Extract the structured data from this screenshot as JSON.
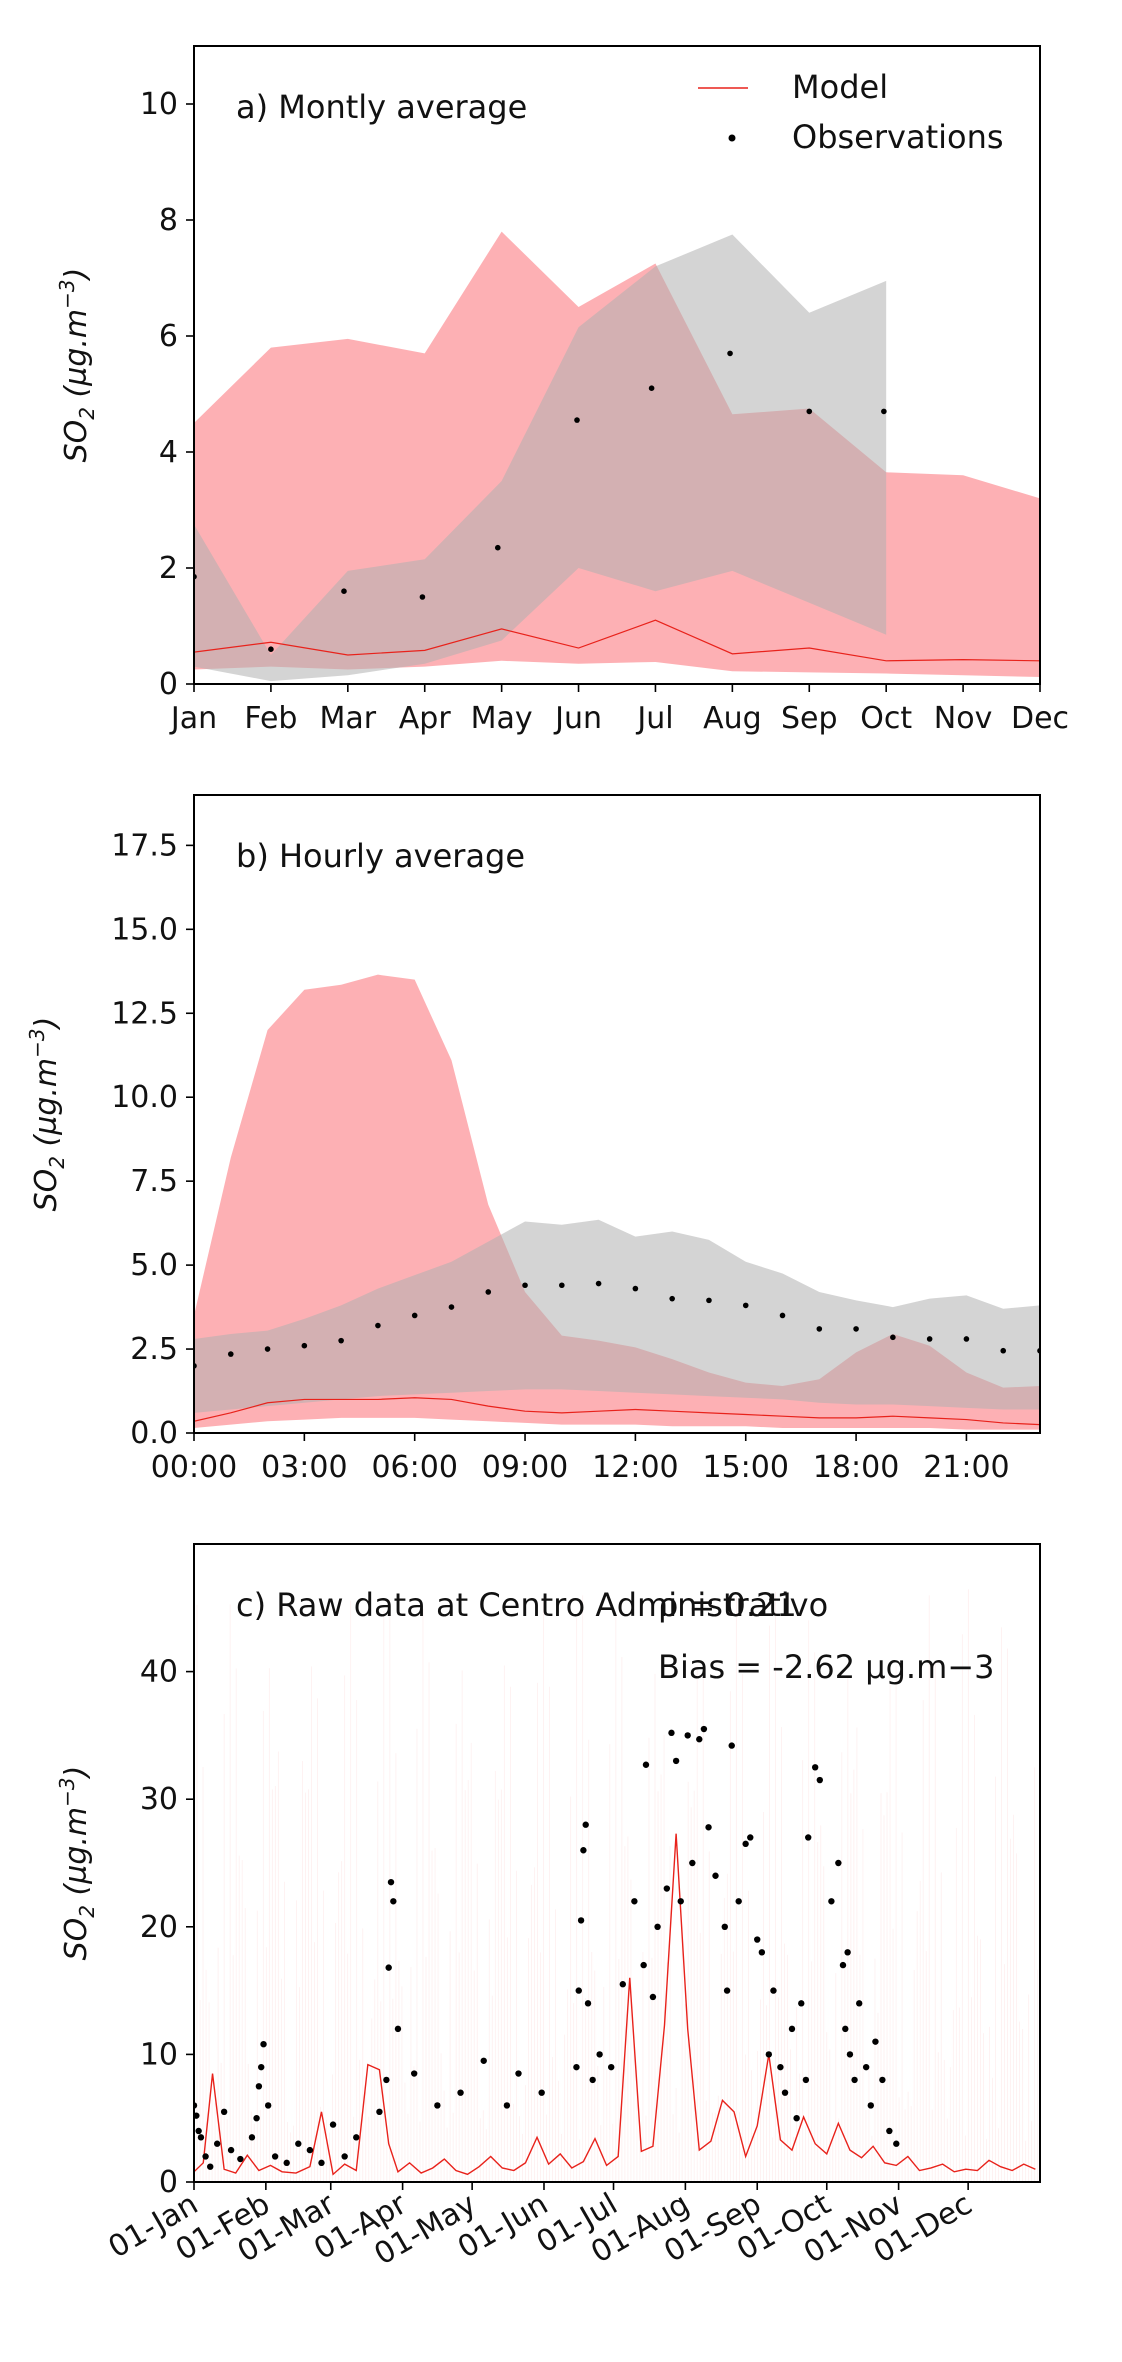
{
  "chart_data": [
    {
      "type": "line",
      "panel": "a",
      "annotation": "a) Montly average",
      "ylabel": "SO2 (µg.m−3)",
      "ylim": [
        0,
        11
      ],
      "yticks": [
        0,
        2,
        4,
        6,
        8,
        10
      ],
      "xlim": [
        0,
        11
      ],
      "categories": [
        "Jan",
        "Feb",
        "Mar",
        "Apr",
        "May",
        "Jun",
        "Jul",
        "Aug",
        "Sep",
        "Oct",
        "Nov",
        "Dec"
      ],
      "legend": {
        "placement": "top-right",
        "entries": [
          "Model",
          "Observations"
        ]
      },
      "colors": {
        "model": "#e8221b",
        "model_band": "#fca8ac",
        "obs": "#000000",
        "obs_band": "#c8c8c8"
      },
      "series": [
        {
          "name": "Model",
          "kind": "line",
          "x": [
            0,
            1,
            2,
            3,
            4,
            5,
            6,
            7,
            8,
            9,
            10,
            11
          ],
          "y": [
            0.55,
            0.72,
            0.5,
            0.58,
            0.95,
            0.62,
            1.1,
            0.52,
            0.62,
            0.4,
            0.42,
            0.4
          ]
        },
        {
          "name": "Model",
          "kind": "band",
          "x": [
            0,
            1,
            2,
            3,
            4,
            5,
            6,
            7,
            8,
            9,
            10,
            11
          ],
          "upper": [
            4.5,
            5.8,
            5.95,
            5.7,
            7.8,
            6.5,
            7.25,
            4.65,
            4.75,
            3.65,
            3.6,
            3.2
          ],
          "lower": [
            0.25,
            0.3,
            0.25,
            0.3,
            0.4,
            0.35,
            0.38,
            0.22,
            0.2,
            0.18,
            0.15,
            0.12
          ]
        },
        {
          "name": "Observations",
          "kind": "band",
          "x": [
            0,
            1,
            2,
            3,
            4,
            5,
            6,
            7,
            8,
            9
          ],
          "upper": [
            2.75,
            0.5,
            1.95,
            2.15,
            3.5,
            6.15,
            7.2,
            7.75,
            6.4,
            6.95
          ],
          "lower": [
            0.3,
            0.05,
            0.15,
            0.35,
            0.75,
            2.0,
            1.6,
            1.95,
            1.4,
            0.85
          ]
        },
        {
          "name": "Observations",
          "kind": "points",
          "x": [
            0,
            1,
            1.95,
            2.97,
            3.95,
            4.98,
            5.95,
            6.97,
            8.0,
            8.97
          ],
          "y": [
            1.85,
            0.6,
            1.6,
            1.5,
            2.35,
            4.55,
            5.1,
            5.7,
            4.7,
            4.7
          ]
        }
      ]
    },
    {
      "type": "line",
      "panel": "b",
      "annotation": "b) Hourly average",
      "ylabel": "SO2 (µg.m−3)",
      "ylim": [
        0,
        19
      ],
      "yticks": [
        0.0,
        2.5,
        5.0,
        7.5,
        10.0,
        12.5,
        15.0,
        17.5
      ],
      "xlim": [
        0,
        23
      ],
      "xtick_values": [
        0,
        3,
        6,
        9,
        12,
        15,
        18,
        21
      ],
      "xtick_labels": [
        "00:00",
        "03:00",
        "06:00",
        "09:00",
        "12:00",
        "15:00",
        "18:00",
        "21:00"
      ],
      "series": [
        {
          "name": "Model",
          "kind": "band",
          "x": [
            0,
            1,
            2,
            3,
            4,
            5,
            6,
            7,
            8,
            9,
            10,
            11,
            12,
            13,
            14,
            15,
            16,
            17,
            18,
            19,
            20,
            21,
            22,
            23
          ],
          "upper": [
            3.5,
            8.2,
            12.0,
            13.2,
            13.35,
            13.65,
            13.5,
            11.1,
            6.8,
            4.2,
            2.9,
            2.75,
            2.55,
            2.2,
            1.8,
            1.5,
            1.4,
            1.6,
            2.4,
            2.95,
            2.6,
            1.8,
            1.35,
            1.4
          ],
          "lower": [
            0.15,
            0.25,
            0.35,
            0.4,
            0.45,
            0.45,
            0.45,
            0.4,
            0.35,
            0.3,
            0.25,
            0.25,
            0.25,
            0.2,
            0.2,
            0.2,
            0.15,
            0.15,
            0.15,
            0.15,
            0.15,
            0.1,
            0.1,
            0.1
          ]
        },
        {
          "name": "Observations",
          "kind": "band",
          "x": [
            0,
            1,
            2,
            3,
            4,
            5,
            6,
            7,
            8,
            9,
            10,
            11,
            12,
            13,
            14,
            15,
            16,
            17,
            18,
            19,
            20,
            21,
            22,
            23
          ],
          "upper": [
            2.8,
            2.95,
            3.05,
            3.4,
            3.8,
            4.3,
            4.7,
            5.1,
            5.7,
            6.3,
            6.2,
            6.35,
            5.85,
            6.0,
            5.75,
            5.1,
            4.75,
            4.2,
            3.95,
            3.75,
            4.0,
            4.1,
            3.7,
            3.8
          ],
          "lower": [
            0.6,
            0.7,
            0.8,
            0.9,
            1.0,
            1.1,
            1.15,
            1.2,
            1.25,
            1.3,
            1.3,
            1.25,
            1.2,
            1.15,
            1.1,
            1.05,
            1.0,
            0.9,
            0.85,
            0.85,
            0.8,
            0.75,
            0.7,
            0.7
          ]
        },
        {
          "name": "Model",
          "kind": "line",
          "x": [
            0,
            1,
            2,
            3,
            4,
            5,
            6,
            7,
            8,
            9,
            10,
            11,
            12,
            13,
            14,
            15,
            16,
            17,
            18,
            19,
            20,
            21,
            22,
            23
          ],
          "y": [
            0.35,
            0.6,
            0.9,
            1.0,
            1.0,
            1.0,
            1.05,
            1.0,
            0.8,
            0.65,
            0.6,
            0.65,
            0.7,
            0.65,
            0.6,
            0.55,
            0.5,
            0.45,
            0.45,
            0.5,
            0.45,
            0.4,
            0.3,
            0.25
          ]
        },
        {
          "name": "Observations",
          "kind": "points",
          "x": [
            0,
            1,
            2,
            3,
            4,
            5,
            6,
            7,
            8,
            9,
            10,
            11,
            12,
            13,
            14,
            15,
            16,
            17,
            18,
            19,
            20,
            21,
            22,
            23
          ],
          "y": [
            2.0,
            2.35,
            2.5,
            2.6,
            2.75,
            3.2,
            3.5,
            3.75,
            4.2,
            4.4,
            4.4,
            4.45,
            4.3,
            4.0,
            3.95,
            3.8,
            3.5,
            3.1,
            3.1,
            2.85,
            2.8,
            2.8,
            2.45,
            2.45
          ]
        }
      ]
    },
    {
      "type": "line",
      "panel": "c",
      "annotation": "c) Raw data at Centro Administrativo",
      "stat_r": "ρ = 0.21",
      "stat_bias": "Bias = -2.62 µg.m−3",
      "ylabel": "SO2 (µg.m−3)",
      "ylim": [
        0,
        50
      ],
      "yticks": [
        0,
        10,
        20,
        30,
        40
      ],
      "xlim": [
        0,
        365
      ],
      "xtick_values": [
        0,
        31,
        59,
        90,
        120,
        151,
        181,
        212,
        243,
        273,
        304,
        334
      ],
      "xtick_labels": [
        "01-Jan",
        "01-Feb",
        "01-Mar",
        "01-Apr",
        "01-May",
        "01-Jun",
        "01-Jul",
        "01-Aug",
        "01-Sep",
        "01-Oct",
        "01-Nov",
        "01-Dec"
      ],
      "series": [
        {
          "name": "Model",
          "kind": "line",
          "x": [
            0,
            4,
            8,
            13,
            18,
            23,
            28,
            33,
            38,
            44,
            50,
            55,
            60,
            65,
            70,
            75,
            80,
            84,
            88,
            93,
            98,
            103,
            108,
            113,
            118,
            123,
            128,
            133,
            138,
            143,
            148,
            153,
            158,
            163,
            168,
            173,
            178,
            183,
            188,
            193,
            198,
            203,
            208,
            213,
            218,
            223,
            228,
            233,
            238,
            243,
            248,
            253,
            258,
            263,
            268,
            273,
            278,
            283,
            288,
            293,
            298,
            303,
            308,
            313,
            318,
            323,
            328,
            333,
            338,
            343,
            348,
            353,
            358,
            363
          ],
          "y": [
            0.8,
            1.5,
            8.5,
            1.0,
            0.7,
            2.1,
            0.9,
            1.3,
            0.8,
            0.7,
            1.2,
            5.5,
            0.6,
            1.4,
            0.9,
            9.2,
            8.8,
            3.0,
            0.8,
            1.5,
            0.7,
            1.1,
            1.8,
            0.9,
            0.6,
            1.2,
            2.0,
            1.1,
            0.9,
            1.5,
            3.5,
            1.4,
            2.2,
            1.1,
            1.6,
            3.4,
            1.3,
            2.0,
            16.0,
            2.4,
            2.8,
            12.3,
            27.3,
            12.0,
            2.5,
            3.2,
            6.4,
            5.5,
            2.0,
            4.4,
            10.0,
            3.3,
            2.5,
            5.1,
            3.0,
            2.2,
            4.6,
            2.5,
            1.9,
            2.8,
            1.5,
            1.3,
            2.0,
            0.9,
            1.1,
            1.4,
            0.8,
            1.0,
            0.9,
            1.7,
            1.2,
            0.9,
            1.4,
            1.0
          ]
        },
        {
          "name": "Observations",
          "kind": "points",
          "x": [
            0,
            1,
            2,
            3,
            5,
            7,
            10,
            13,
            16,
            20,
            25,
            27,
            28,
            29,
            30,
            32,
            35,
            40,
            45,
            50,
            55,
            60,
            65,
            70,
            80,
            83,
            84,
            85,
            86,
            88,
            95,
            105,
            115,
            125,
            135,
            140,
            150,
            165,
            166,
            167,
            168,
            169,
            170,
            172,
            175,
            180,
            185,
            190,
            194,
            195,
            198,
            200,
            204,
            206,
            208,
            210,
            213,
            215,
            218,
            220,
            222,
            225,
            229,
            230,
            232,
            235,
            238,
            240,
            243,
            245,
            248,
            250,
            253,
            255,
            258,
            260,
            262,
            264,
            265,
            268,
            270,
            275,
            278,
            280,
            281,
            282,
            283,
            285,
            287,
            290,
            292,
            294,
            297,
            300,
            303
          ],
          "y": [
            6.0,
            5.2,
            4.0,
            3.5,
            2.0,
            1.2,
            3.0,
            5.5,
            2.5,
            1.8,
            3.5,
            5.0,
            7.5,
            9.0,
            10.8,
            6.0,
            2.0,
            1.5,
            3.0,
            2.5,
            1.5,
            4.5,
            2.0,
            3.5,
            5.5,
            8.0,
            16.8,
            23.5,
            22.0,
            12.0,
            8.5,
            6.0,
            7.0,
            9.5,
            6.0,
            8.5,
            7.0,
            9.0,
            15.0,
            20.5,
            26.0,
            28.0,
            14.0,
            8.0,
            10.0,
            9.0,
            15.5,
            22.0,
            17.0,
            32.7,
            14.5,
            20.0,
            23.0,
            35.2,
            33.0,
            22.0,
            35.0,
            25.0,
            34.7,
            35.5,
            27.8,
            24.0,
            20.0,
            15.0,
            34.2,
            22.0,
            26.5,
            27.0,
            19.0,
            18.0,
            10.0,
            15.0,
            9.0,
            7.0,
            12.0,
            5.0,
            14.0,
            8.0,
            27.0,
            32.5,
            31.5,
            22.0,
            25.0,
            17.0,
            12.0,
            18.0,
            10.0,
            8.0,
            14.0,
            9.0,
            6.0,
            11.0,
            8.0,
            4.0,
            3.0
          ]
        }
      ]
    }
  ]
}
